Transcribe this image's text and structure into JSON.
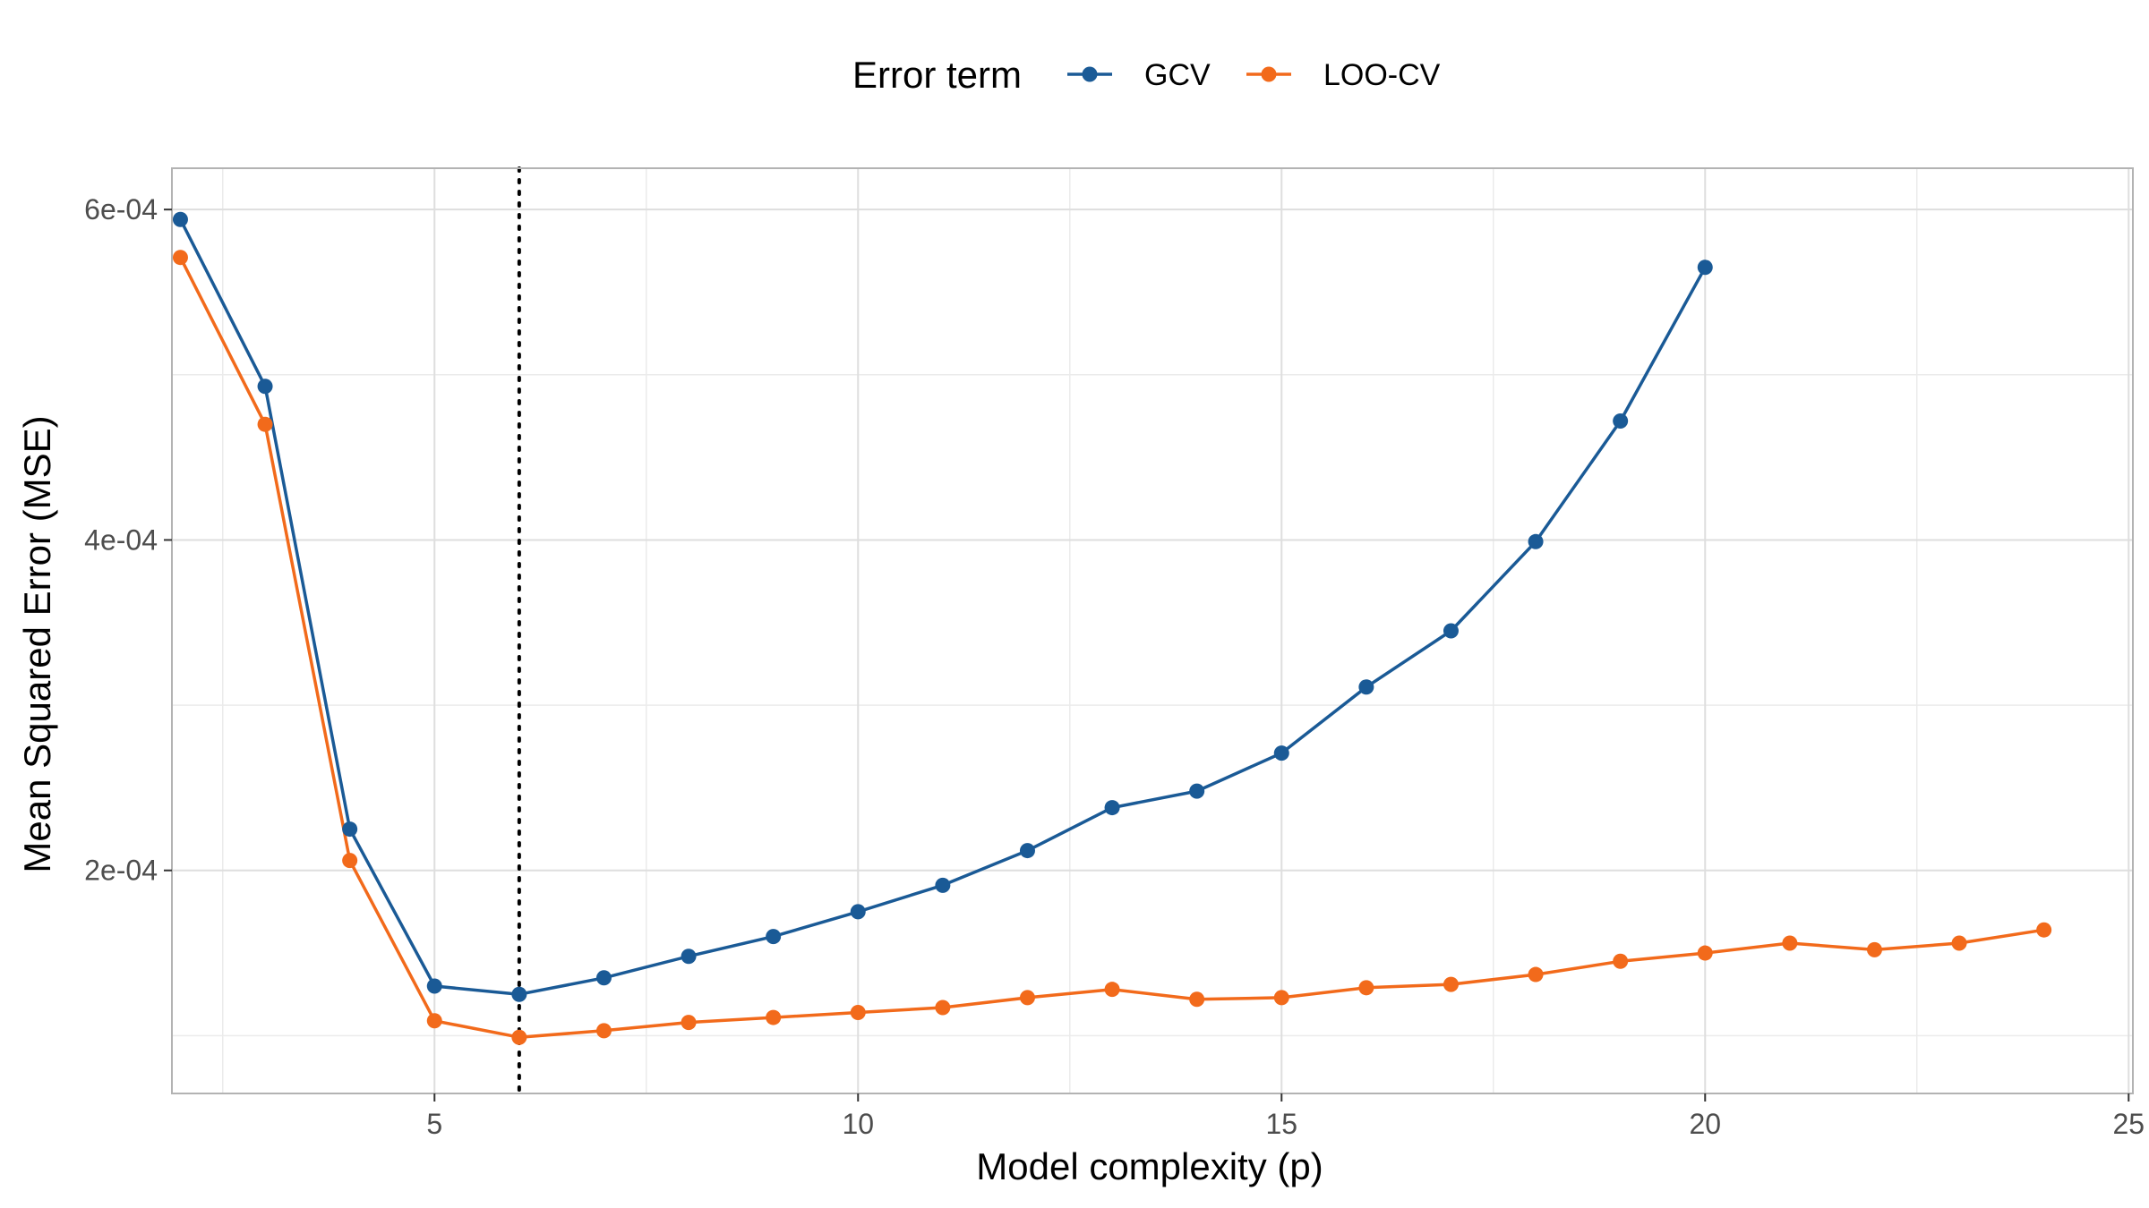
{
  "chart_data": {
    "type": "line",
    "xlabel": "Model complexity (p)",
    "ylabel": "Mean Squared Error (MSE)",
    "xlim": [
      1.9,
      25.05
    ],
    "ylim": [
      6.5e-05,
      0.000625
    ],
    "x_ticks": [
      5,
      10,
      15,
      20,
      25
    ],
    "x_tick_labels": [
      "5",
      "10",
      "15",
      "20",
      "25"
    ],
    "y_ticks": [
      0.0002,
      0.0004,
      0.0006
    ],
    "y_tick_labels": [
      "2e-04",
      "4e-04",
      "6e-04"
    ],
    "grid": true,
    "reference_line": {
      "x": 6,
      "style": "dotted"
    },
    "legend": {
      "title": "Error term",
      "position": "top",
      "entries": [
        "GCV",
        "LOO-CV"
      ]
    },
    "series": [
      {
        "name": "GCV",
        "color": "#1a5a96",
        "x": [
          2,
          3,
          4,
          5,
          6,
          7,
          8,
          9,
          10,
          11,
          12,
          13,
          14,
          15,
          16,
          17,
          18,
          19,
          20
        ],
        "values": [
          0.000594,
          0.000493,
          0.000225,
          0.00013,
          0.000125,
          0.000135,
          0.000148,
          0.00016,
          0.000175,
          0.000191,
          0.000212,
          0.000238,
          0.000248,
          0.000271,
          0.000311,
          0.000345,
          0.000399,
          0.000472,
          0.000565
        ]
      },
      {
        "name": "LOO-CV",
        "color": "#f26a1b",
        "x": [
          2,
          3,
          4,
          5,
          6,
          7,
          8,
          9,
          10,
          11,
          12,
          13,
          14,
          15,
          16,
          17,
          18,
          19,
          20,
          21,
          22,
          23,
          24
        ],
        "values": [
          0.000571,
          0.00047,
          0.000206,
          0.000109,
          9.9e-05,
          0.000103,
          0.000108,
          0.000111,
          0.000114,
          0.000117,
          0.000123,
          0.000128,
          0.000122,
          0.000123,
          0.000129,
          0.000131,
          0.000137,
          0.000145,
          0.00015,
          0.000156,
          0.000152,
          0.000156,
          0.000164
        ]
      }
    ]
  }
}
